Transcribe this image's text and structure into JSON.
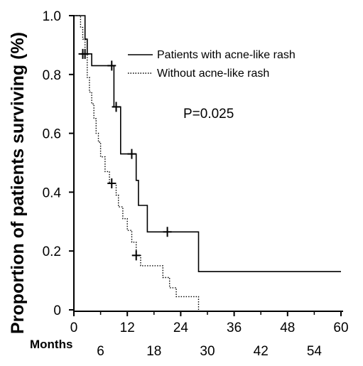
{
  "chart_data": {
    "type": "line",
    "title": "",
    "ylabel": "Proportion of patients surviving (%)",
    "xlabel": "Months",
    "xlim": [
      0,
      60
    ],
    "ylim": [
      0,
      1.0
    ],
    "x_ticks_top": [
      "0",
      "12",
      "24",
      "36",
      "48",
      "60"
    ],
    "x_ticks_bottom": [
      "6",
      "18",
      "30",
      "42",
      "54"
    ],
    "y_ticks": [
      "0",
      "0.2",
      "0.4",
      "0.6",
      "0.8",
      "1.0"
    ],
    "grid": false,
    "legend_position": "top-right",
    "annotation": "P=0.025",
    "series": [
      {
        "name": "Patients with acne-like rash",
        "style": "solid",
        "color": "#000000",
        "steps": [
          [
            0,
            1.0
          ],
          [
            2.5,
            1.0
          ],
          [
            2.5,
            0.92
          ],
          [
            3,
            0.92
          ],
          [
            3,
            0.87
          ],
          [
            4,
            0.87
          ],
          [
            4,
            0.83
          ],
          [
            9,
            0.83
          ],
          [
            9,
            0.69
          ],
          [
            10.5,
            0.69
          ],
          [
            10.5,
            0.53
          ],
          [
            14,
            0.53
          ],
          [
            14,
            0.44
          ],
          [
            14.5,
            0.44
          ],
          [
            14.5,
            0.355
          ],
          [
            16.5,
            0.355
          ],
          [
            16.5,
            0.265
          ],
          [
            28,
            0.265
          ],
          [
            28,
            0.13
          ],
          [
            60,
            0.13
          ]
        ],
        "censored": [
          [
            2,
            0.87
          ],
          [
            8.5,
            0.83
          ],
          [
            9.5,
            0.69
          ],
          [
            13,
            0.53
          ],
          [
            21,
            0.265
          ]
        ]
      },
      {
        "name": "Without acne-like rash",
        "style": "dotted",
        "color": "#000000",
        "steps": [
          [
            0,
            1.0
          ],
          [
            1.5,
            1.0
          ],
          [
            1.5,
            0.96
          ],
          [
            2,
            0.96
          ],
          [
            2,
            0.92
          ],
          [
            2.5,
            0.92
          ],
          [
            2.5,
            0.87
          ],
          [
            3,
            0.87
          ],
          [
            3,
            0.79
          ],
          [
            3.5,
            0.79
          ],
          [
            3.5,
            0.74
          ],
          [
            4,
            0.74
          ],
          [
            4,
            0.7
          ],
          [
            4.5,
            0.7
          ],
          [
            4.5,
            0.65
          ],
          [
            5,
            0.65
          ],
          [
            5,
            0.6
          ],
          [
            5.5,
            0.6
          ],
          [
            5.5,
            0.57
          ],
          [
            6,
            0.57
          ],
          [
            6,
            0.52
          ],
          [
            7,
            0.52
          ],
          [
            7,
            0.47
          ],
          [
            8,
            0.47
          ],
          [
            8,
            0.43
          ],
          [
            9.5,
            0.43
          ],
          [
            9.5,
            0.39
          ],
          [
            10,
            0.39
          ],
          [
            10,
            0.35
          ],
          [
            11,
            0.35
          ],
          [
            11,
            0.31
          ],
          [
            12,
            0.31
          ],
          [
            12,
            0.27
          ],
          [
            13,
            0.27
          ],
          [
            13,
            0.23
          ],
          [
            14,
            0.23
          ],
          [
            14,
            0.185
          ],
          [
            15,
            0.185
          ],
          [
            15,
            0.15
          ],
          [
            20,
            0.15
          ],
          [
            20,
            0.11
          ],
          [
            21.5,
            0.11
          ],
          [
            21.5,
            0.075
          ],
          [
            23,
            0.075
          ],
          [
            23,
            0.045
          ],
          [
            28,
            0.045
          ],
          [
            28,
            0.0
          ]
        ],
        "censored": [
          [
            2.5,
            0.87
          ],
          [
            8.5,
            0.43
          ],
          [
            14,
            0.185
          ]
        ]
      }
    ]
  }
}
